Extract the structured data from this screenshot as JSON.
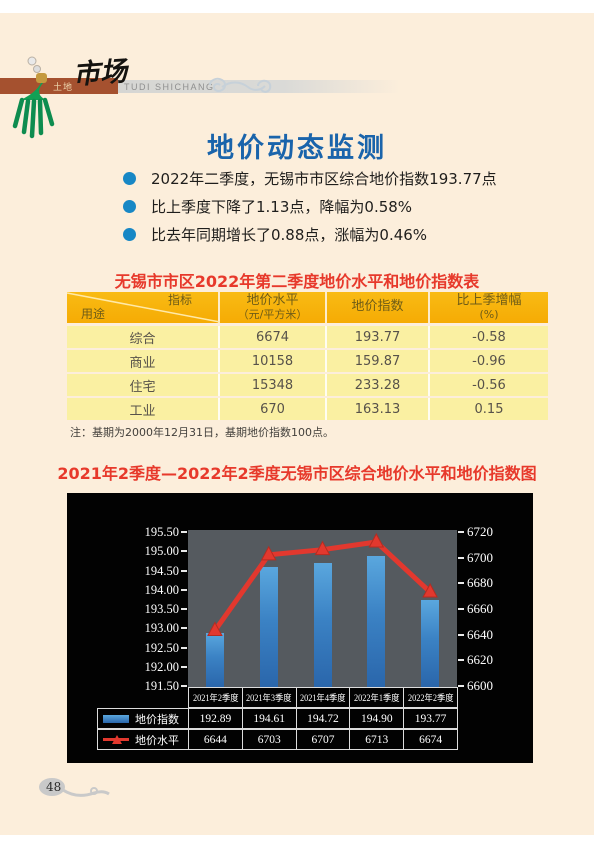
{
  "header": {
    "logo_prefix": "土地",
    "logo_cn": "市场",
    "logo_en": "TUDI SHICHANG"
  },
  "page_number": "48",
  "section": {
    "title": "地价动态监测",
    "bullets": [
      "2022年二季度，无锡市市区综合地价指数193.77点",
      "比上季度下降了1.13点，降幅为0.58%",
      "比去年同期增长了0.88点，涨幅为0.46%"
    ]
  },
  "table": {
    "title": "无锡市市区2022年第二季度地价水平和地价指数表",
    "corner": {
      "top_label": "指标",
      "bottom_label": "用途"
    },
    "headers": [
      {
        "line1": "地价水平",
        "line2": "（元/平方米）"
      },
      {
        "line1": "地价指数",
        "line2": ""
      },
      {
        "line1": "比上季增幅",
        "line2": "(%)"
      }
    ],
    "rows": [
      {
        "use": "综合",
        "level": "6674",
        "index": "193.77",
        "change": "-0.58"
      },
      {
        "use": "商业",
        "level": "10158",
        "index": "159.87",
        "change": "-0.96"
      },
      {
        "use": "住宅",
        "level": "15348",
        "index": "233.28",
        "change": "-0.56"
      },
      {
        "use": "工业",
        "level": "670",
        "index": "163.13",
        "change": "0.15"
      }
    ],
    "note": "注：基期为2000年12月31日，基期地价指数100点。"
  },
  "chart_title": "2021年2季度—2022年2季度无锡市区综合地价水平和地价指数图",
  "chart_data": {
    "type": "bar",
    "combo": "bar+line dual axis",
    "title": "2021年2季度—2022年2季度无锡市区综合地价水平和地价指数图",
    "categories": [
      "2021年2季度",
      "2021年3季度",
      "2021年4季度",
      "2022年1季度",
      "2022年2季度"
    ],
    "series": [
      {
        "name": "地价指数",
        "type": "bar",
        "axis": "left",
        "values": [
          192.89,
          194.61,
          194.72,
          194.9,
          193.77
        ],
        "display": [
          "192.89",
          "194.61",
          "194.72",
          "194.90",
          "193.77"
        ]
      },
      {
        "name": "地价水平",
        "type": "line",
        "axis": "right",
        "values": [
          6644,
          6703,
          6707,
          6713,
          6674
        ],
        "display": [
          "6644",
          "6703",
          "6707",
          "6713",
          "6674"
        ]
      }
    ],
    "left_axis": {
      "min": 191.5,
      "max": 195.5,
      "step": 0.5,
      "ticks": [
        "195.50",
        "195.00",
        "194.50",
        "194.00",
        "193.50",
        "193.00",
        "192.50",
        "192.00",
        "191.50"
      ]
    },
    "right_axis": {
      "min": 6600,
      "max": 6720,
      "step": 20,
      "ticks": [
        "6720",
        "6700",
        "6680",
        "6660",
        "6640",
        "6620",
        "6600"
      ]
    },
    "gridlines": false,
    "legend_position": "bottom-table",
    "colors": {
      "bar_top": "#5aa7de",
      "bar_bottom": "#2a66ab",
      "line": "#e2382e",
      "plot_bg": "#555a5f",
      "chart_bg": "#000000",
      "text": "#ffffff"
    }
  }
}
